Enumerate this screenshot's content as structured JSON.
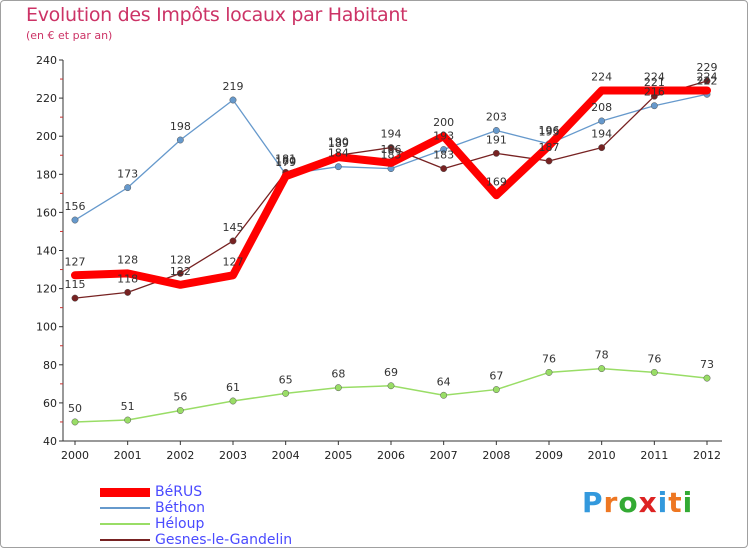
{
  "chart_data": {
    "type": "line",
    "title": "Evolution des Impôts locaux par Habitant",
    "subtitle": "(en € et par an)",
    "xlabel": "",
    "ylabel": "",
    "x": [
      "2000",
      "2001",
      "2002",
      "2003",
      "2004",
      "2005",
      "2006",
      "2007",
      "2008",
      "2009",
      "2010",
      "2011",
      "2012"
    ],
    "ylim": [
      40,
      240
    ],
    "yticks": [
      40,
      60,
      80,
      100,
      120,
      140,
      160,
      180,
      200,
      220,
      240
    ],
    "grid": false,
    "legend_position": "bottom-left",
    "series": [
      {
        "name": "BéRUS",
        "color": "#ff0000",
        "values": [
          127,
          128,
          122,
          127,
          179,
          189,
          186,
          200,
          169,
          195,
          224,
          224,
          224
        ],
        "labels": [
          "127",
          "128",
          "122",
          "127",
          "179",
          "189",
          "186",
          "200",
          "169",
          "195",
          "224",
          "224",
          "224"
        ]
      },
      {
        "name": "Béthon",
        "color": "#6699cc",
        "values": [
          156,
          173,
          198,
          219,
          180,
          184,
          183,
          193,
          203,
          196,
          208,
          216,
          222
        ],
        "labels": [
          "156",
          "173",
          "198",
          "219",
          "180",
          "184",
          "183",
          "193",
          "203",
          "196",
          "208",
          "216",
          "222"
        ]
      },
      {
        "name": "Héloup",
        "color": "#99dd66",
        "values": [
          50,
          51,
          56,
          61,
          65,
          68,
          69,
          64,
          67,
          76,
          78,
          76,
          73
        ],
        "labels": [
          "50",
          "51",
          "56",
          "61",
          "65",
          "68",
          "69",
          "64",
          "67",
          "76",
          "78",
          "76",
          "73"
        ]
      },
      {
        "name": "Gesnes-le-Gandelin",
        "color": "#772222",
        "values": [
          115,
          118,
          128,
          145,
          181,
          190,
          194,
          183,
          191,
          187,
          194,
          221,
          229
        ],
        "labels": [
          "115",
          "118",
          "128",
          "145",
          "181",
          "190",
          "194",
          "183",
          "191",
          "187",
          "194",
          "221",
          "229"
        ]
      }
    ]
  },
  "brand": {
    "letters": [
      {
        "ch": "P",
        "color": "#3399dd"
      },
      {
        "ch": "r",
        "color": "#ee7722"
      },
      {
        "ch": "o",
        "color": "#33aa33"
      },
      {
        "ch": "x",
        "color": "#dd2222"
      },
      {
        "ch": "i",
        "color": "#3399dd"
      },
      {
        "ch": "t",
        "color": "#ee7722"
      },
      {
        "ch": "i",
        "color": "#33aa33"
      }
    ]
  }
}
